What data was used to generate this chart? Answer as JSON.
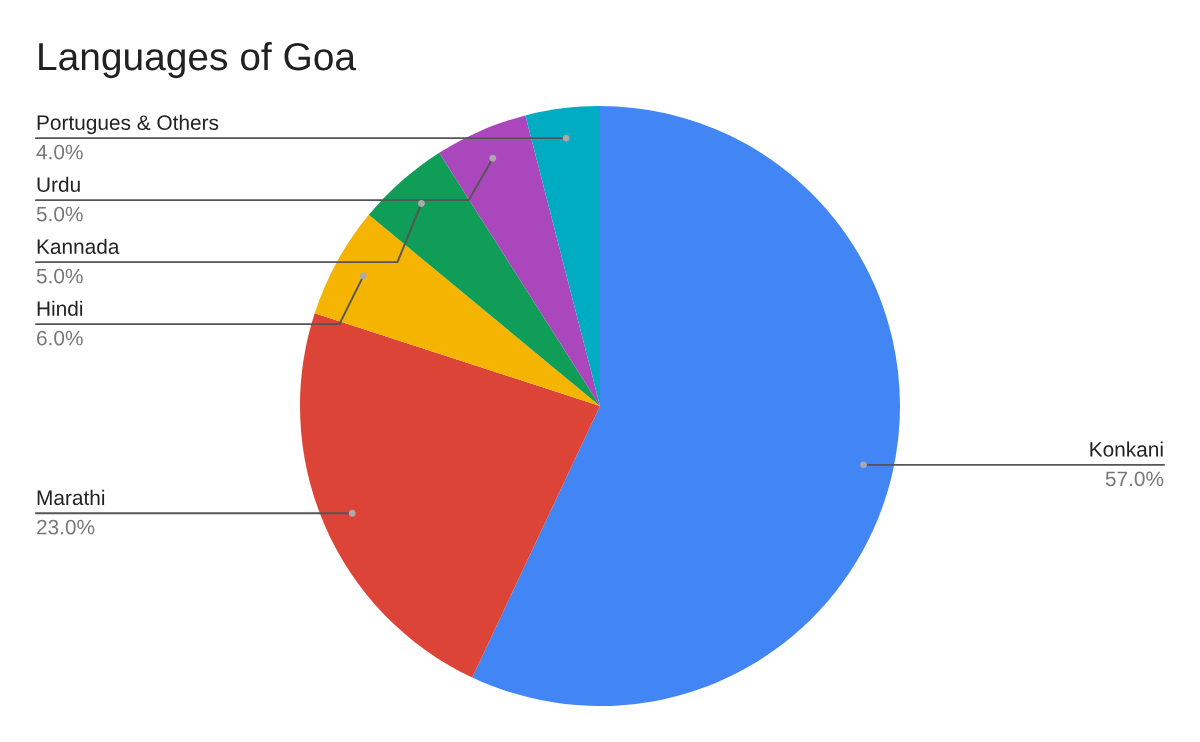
{
  "chart_data": {
    "type": "pie",
    "title": "Languages of Goa",
    "categories": [
      "Konkani",
      "Marathi",
      "Hindi",
      "Kannada",
      "Urdu",
      "Portugues & Others"
    ],
    "values": [
      57,
      23,
      6,
      5,
      5,
      4
    ],
    "value_labels": [
      "57.0%",
      "23.0%",
      "6.0%",
      "5.0%",
      "5.0%",
      "4.0%"
    ],
    "colors": [
      "#4285f4",
      "#db4437",
      "#f4b400",
      "#0f9d58",
      "#ab47bc",
      "#00acc1"
    ]
  }
}
